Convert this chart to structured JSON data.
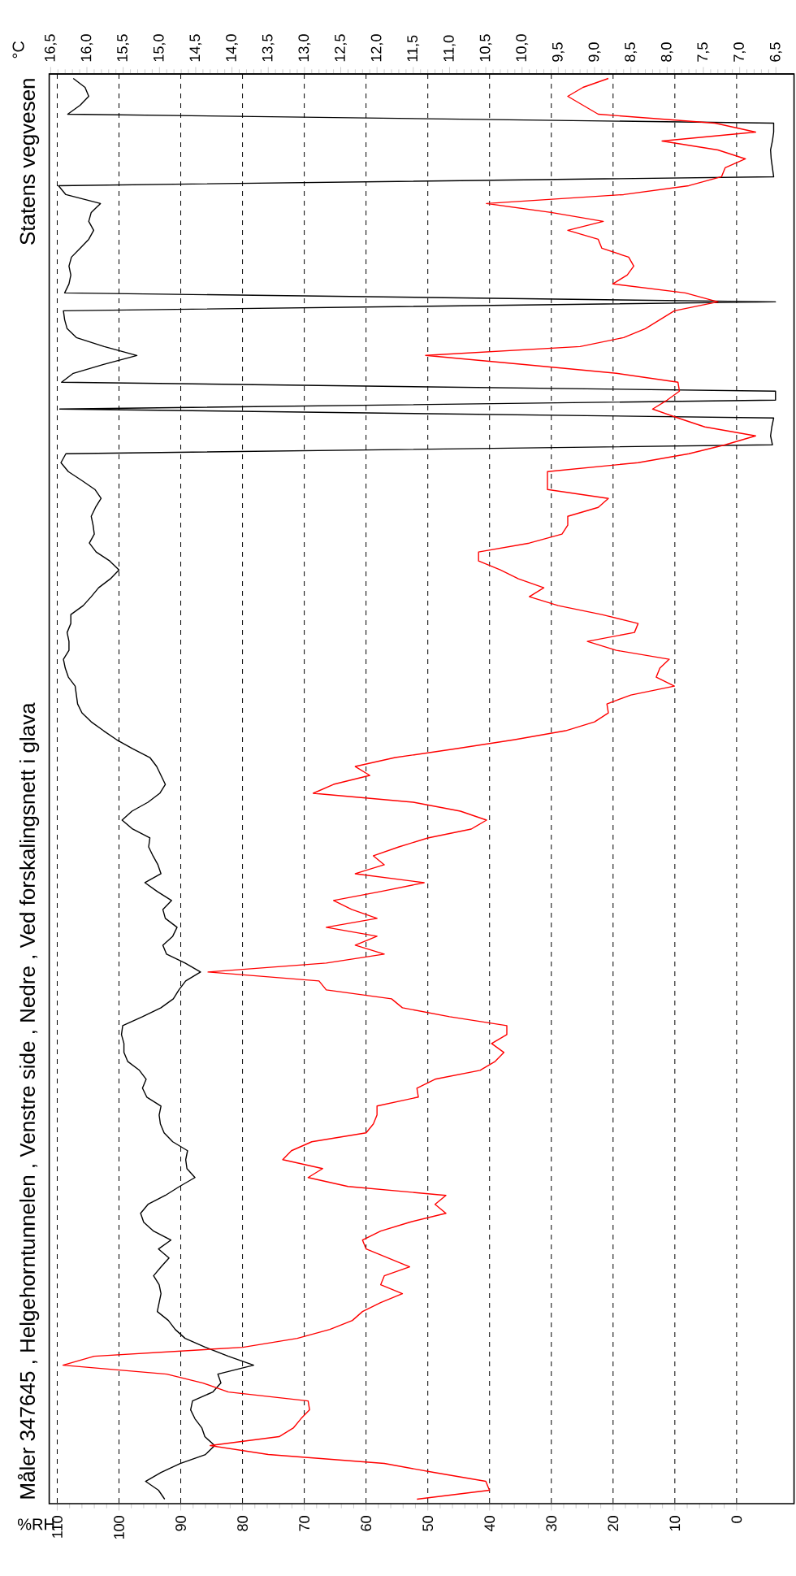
{
  "chart_data": {
    "type": "line",
    "orientation": "horizontal",
    "title": "Måler 347645 , Helgehorntunnelen , Venstre side , Nedre , Ved forskalingsnett i glava",
    "xlabel": "%RH",
    "x2label": "°C",
    "annotations": [
      "Statens vegvesen"
    ],
    "grid": "x",
    "marker": "none",
    "line_style": "solid",
    "tick_labels": "x",
    "categories": [
      null,
      null,
      null,
      null,
      null,
      null,
      null,
      null,
      null,
      null,
      null,
      null,
      null,
      null,
      null,
      null,
      null,
      null,
      null,
      null,
      null,
      null,
      null,
      null,
      null,
      null,
      null,
      null,
      null,
      null,
      null,
      null,
      null,
      null,
      null,
      null,
      null,
      null,
      null,
      null,
      null,
      null,
      null,
      null,
      null,
      null,
      null,
      null,
      null,
      null,
      null,
      null,
      null,
      null,
      null,
      null,
      null,
      null,
      null,
      null,
      null,
      null,
      null,
      null,
      null,
      null,
      null,
      null,
      null,
      null,
      null,
      null,
      null,
      null,
      null,
      null,
      null,
      null,
      null,
      null,
      null,
      null,
      null,
      null,
      null,
      null,
      null,
      null,
      null,
      null,
      null,
      null,
      null,
      null,
      null,
      null,
      null,
      null,
      null,
      null,
      null,
      null,
      null,
      null,
      null,
      null,
      null,
      null,
      null,
      null,
      null,
      null,
      null,
      null,
      null,
      null,
      null,
      null,
      null,
      null,
      null,
      null,
      null,
      null,
      null,
      null,
      null,
      null,
      null,
      null,
      null,
      null,
      null,
      null,
      null,
      null,
      null,
      null,
      null,
      null,
      null,
      null,
      null,
      null,
      null,
      null,
      null,
      null,
      null,
      null,
      null,
      null,
      null,
      null,
      null,
      null,
      null,
      null,
      null,
      null
    ],
    "xlim": [
      111.3,
      -9.3
    ],
    "xticks": [
      110,
      100,
      90,
      80,
      70,
      60,
      50,
      40,
      30,
      20,
      10,
      0
    ],
    "x2lim": [
      16.52,
      6.25
    ],
    "x2ticks": [
      {
        "value": 16.5,
        "label": "16,5"
      },
      {
        "value": 16,
        "label": "16,0"
      },
      {
        "value": 15.5,
        "label": "15,5"
      },
      {
        "value": 15,
        "label": "15,0"
      },
      {
        "value": 14.5,
        "label": "14,5"
      },
      {
        "value": 14,
        "label": "14,0"
      },
      {
        "value": 13.5,
        "label": "13,5"
      },
      {
        "value": 13,
        "label": "13,0"
      },
      {
        "value": 12.5,
        "label": "12,5"
      },
      {
        "value": 12,
        "label": "12,0"
      },
      {
        "value": 11.5,
        "label": "11,5"
      },
      {
        "value": 11,
        "label": "11,0"
      },
      {
        "value": 10.5,
        "label": "10,5"
      },
      {
        "value": 10,
        "label": "10,0"
      },
      {
        "value": 9.5,
        "label": "9,5"
      },
      {
        "value": 9,
        "label": "9,0"
      },
      {
        "value": 8.5,
        "label": "8,5"
      },
      {
        "value": 8,
        "label": "8,0"
      },
      {
        "value": 7.5,
        "label": "7,5"
      },
      {
        "value": 7,
        "label": "7,0"
      },
      {
        "value": 6.5,
        "label": "6,5"
      }
    ],
    "series": [
      {
        "color": "#000000",
        "values": [
          107.4,
          105.5,
          104.9,
          106.3,
          108.3,
          -6,
          -6,
          -5.8,
          -5.5,
          -5.6,
          -5.8,
          -6,
          109.8,
          108.6,
          103,
          104.5,
          104.9,
          104.1,
          104.9,
          106.3,
          107.7,
          108.1,
          107.8,
          108.1,
          108.8,
          -6.3,
          109,
          108.8,
          108.4,
          106.9,
          102.4,
          97.1,
          102.5,
          107.4,
          109.3,
          -6.3,
          -6.3,
          109.6,
          -6,
          -5.7,
          -5.5,
          -5.8,
          108.6,
          109.4,
          108.2,
          106,
          103.9,
          102.9,
          103.8,
          104.5,
          104.2,
          104,
          104.8,
          103.7,
          101.5,
          100,
          101.4,
          103.3,
          104.5,
          105.8,
          107.8,
          107.8,
          108.4,
          108.1,
          108.1,
          109,
          108.7,
          108.2,
          107.1,
          106.9,
          106.7,
          106,
          104.5,
          102.5,
          100.4,
          97.8,
          95,
          93.9,
          93.2,
          92.5,
          93.4,
          95.3,
          97.9,
          99.5,
          97.8,
          95,
          95.2,
          94.5,
          93.7,
          93.2,
          95.8,
          93.8,
          91.5,
          92.9,
          92.5,
          90.6,
          91.3,
          92.9,
          92.3,
          89.3,
          86.8,
          89.2,
          90.3,
          91.2,
          93.2,
          96.2,
          99.4,
          99.6,
          99.2,
          99.2,
          98.6,
          96.7,
          95.6,
          96.2,
          95.5,
          93.2,
          93.5,
          93.3,
          92.7,
          91.3,
          88.9,
          89.2,
          89,
          87.7,
          90.2,
          92.5,
          95.3,
          96.5,
          96,
          94.4,
          91.6,
          93.6,
          91.9,
          93.2,
          94.4,
          93.5,
          93.2,
          93.5,
          93.8,
          92,
          90.9,
          89.3,
          86,
          82.3,
          78.2,
          84,
          83.5,
          84.8,
          88.1,
          88.4,
          87.7,
          86.6,
          86.1,
          84.5,
          86,
          90.1,
          93.2,
          95.7,
          93.6,
          92.6
        ]
      },
      {
        "color": "#ff0000",
        "axis": "x2",
        "values": [
          8.81,
          9.16,
          9.37,
          9.16,
          8.95,
          7.34,
          6.78,
          8.07,
          7.3,
          6.92,
          7.2,
          7.25,
          7.7,
          8.6,
          10.49,
          9.6,
          8.88,
          9.37,
          8.95,
          8.9,
          8.53,
          8.46,
          8.55,
          8.75,
          7.75,
          7.3,
          7.9,
          8.1,
          8.3,
          8.6,
          9.2,
          11.33,
          10.0,
          8.7,
          7.85,
          7.83,
          8.0,
          8.2,
          7.85,
          7.48,
          6.78,
          7.2,
          7.7,
          8.4,
          9.65,
          9.65,
          9.65,
          8.81,
          8.95,
          9.37,
          9.37,
          9.45,
          9.9,
          10.6,
          10.6,
          10.3,
          10.05,
          9.7,
          9.9,
          9.5,
          8.9,
          8.4,
          8.45,
          9.1,
          8.7,
          7.97,
          8.1,
          8.15,
          7.9,
          8.5,
          8.83,
          8.81,
          9.0,
          9.4,
          10.1,
          10.9,
          11.75,
          12.3,
          12.1,
          12.6,
          12.88,
          11.5,
          10.85,
          10.49,
          10.7,
          11.3,
          11.7,
          12.05,
          11.9,
          12.3,
          11.35,
          11.95,
          12.6,
          12.35,
          12.0,
          12.7,
          12.0,
          12.3,
          11.9,
          12.7,
          14.33,
          12.8,
          12.7,
          11.8,
          11.65,
          11.0,
          10.21,
          10.21,
          10.42,
          10.25,
          10.37,
          10.58,
          11.2,
          11.45,
          11.43,
          12.0,
          12.0,
          12.05,
          12.15,
          12.9,
          13.18,
          13.3,
          12.75,
          12.95,
          12.4,
          11.05,
          11.2,
          11.05,
          11.55,
          11.95,
          12.2,
          12.15,
          11.85,
          11.55,
          11.9,
          11.95,
          11.65,
          11.95,
          12.2,
          12.34,
          12.65,
          13.1,
          13.85,
          15.9,
          16.33,
          14.9,
          14.4,
          14.05,
          12.95,
          12.93,
          13.05,
          13.15,
          13.35,
          14.3,
          13.5,
          11.9,
          11.22,
          10.5,
          10.45,
          11.45
        ]
      }
    ]
  }
}
